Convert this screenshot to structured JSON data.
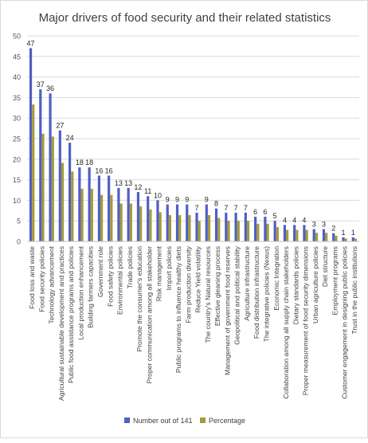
{
  "chart_data": {
    "type": "bar",
    "title": "Major drivers of food security and their related statistics",
    "xlabel": "",
    "ylabel": "",
    "ylim": [
      0,
      50
    ],
    "y_ticks": [
      0,
      5,
      10,
      15,
      20,
      25,
      30,
      35,
      40,
      45,
      50
    ],
    "grid": true,
    "legend_position": "bottom",
    "categories": [
      "Food loss and waste",
      "Food security policies",
      "Technology advancement",
      "Agricultural sustainable development and practices",
      "Public food assistance programs and policies",
      "Local production enhancement",
      "Building farmers capacities",
      "Government role",
      "Food safety policies",
      "Environmental policies",
      "Trade policies",
      "Promote the consumer's education",
      "Proper communication among all stakeholder",
      "Risk management",
      "Import policies",
      "Public programs to influence healthy diets",
      "Farm production diversity",
      "Reduce Yield volatility",
      "The country's Natural resources",
      "Effective gleaning process",
      "Management of government food reserves",
      "Geopolitical and political stability",
      "Agriculture infrastructure",
      "Food distribution infrastructure",
      "The integrative policies (Nexus)",
      "Economic Integration",
      "Collaboration among all supply chain stakeholders",
      "Dietary standards policies",
      "Proper measurement of food security dimensions",
      "Urban agriculture policies",
      "Diet structure",
      "Employment programs",
      "Customer engagement in designing public policies",
      "Trust in the public institutions"
    ],
    "series": [
      {
        "name": "Number out of 141",
        "color": "#4f5fc4",
        "values": [
          47,
          37,
          36,
          27,
          24,
          18,
          18,
          16,
          16,
          13,
          13,
          12,
          11,
          10,
          9,
          9,
          9,
          7,
          9,
          8,
          7,
          7,
          7,
          6,
          6,
          5,
          4,
          4,
          4,
          3,
          3,
          2,
          1,
          1
        ],
        "data_labels": [
          "47",
          "37",
          "36",
          "27",
          "24",
          "18",
          "18",
          "16",
          "16",
          "13",
          "13",
          "12",
          "11",
          "10",
          "9",
          "9",
          "9",
          "7",
          "9",
          "8",
          "7",
          "7",
          "7",
          "6",
          "6",
          "5",
          "4",
          "4",
          "4",
          "3",
          "3",
          "2",
          "1",
          "1"
        ]
      },
      {
        "name": "Percentage",
        "color": "#a49a3a",
        "values": [
          33.3,
          26.2,
          25.5,
          19.1,
          17.0,
          12.8,
          12.8,
          11.3,
          11.3,
          9.2,
          9.2,
          8.5,
          7.8,
          7.1,
          6.4,
          6.4,
          6.4,
          5.0,
          6.4,
          5.7,
          5.0,
          5.0,
          5.0,
          4.3,
          4.3,
          3.5,
          2.8,
          2.8,
          2.8,
          2.1,
          2.1,
          1.4,
          0.7,
          0.7
        ]
      }
    ]
  }
}
